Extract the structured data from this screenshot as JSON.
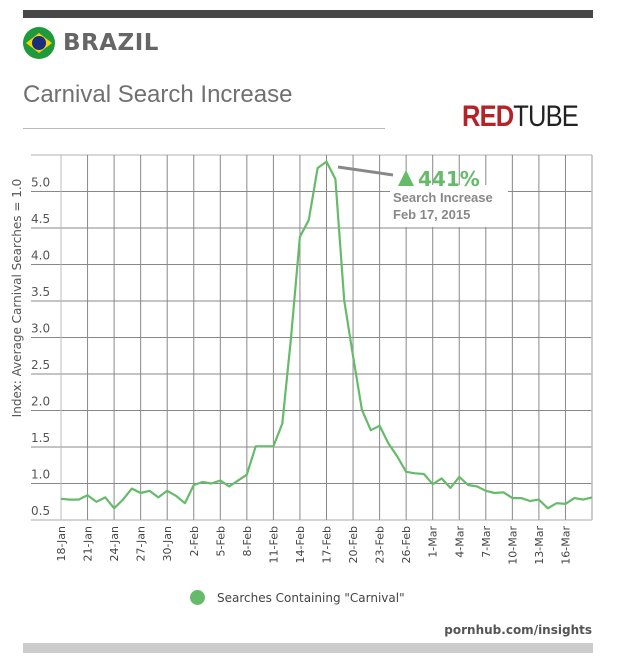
{
  "header": {
    "country": "BRAZIL",
    "title": "Carnival Search Increase",
    "logo": "REDTUBE",
    "flag_icon": "brazil-flag-icon"
  },
  "footer": {
    "source": "pornhub.com/insights"
  },
  "colors": {
    "line": "#66bb6a",
    "accent": "#5cb85c",
    "grid": "#888888",
    "logo_red": "#b5232a"
  },
  "chart_data": {
    "type": "line",
    "title": "Carnival Search Increase",
    "xlabel": "",
    "ylabel": "Index: Average Carnival Searches = 1.0",
    "ylim": [
      0.5,
      5.5
    ],
    "yticks": [
      "0.5",
      "1.0",
      "1.5",
      "2.0",
      "2.5",
      "3.0",
      "3.5",
      "4.0",
      "4.5",
      "5.0"
    ],
    "xticks": [
      "18-Jan",
      "21-Jan",
      "24-Jan",
      "27-Jan",
      "30-Jan",
      "2-Feb",
      "5-Feb",
      "8-Feb",
      "11-Feb",
      "14-Feb",
      "17-Feb",
      "20-Feb",
      "23-Feb",
      "26-Feb",
      "1-Mar",
      "4-Mar",
      "7-Mar",
      "10-Mar",
      "13-Mar",
      "16-Mar"
    ],
    "x_start": "18-Jan",
    "x_end": "19-Mar",
    "grid": true,
    "legend": "bottom",
    "series": [
      {
        "name": "Searches Containing \"Carnival\"",
        "values": [
          0.79,
          0.78,
          0.78,
          0.84,
          0.75,
          0.81,
          0.66,
          0.78,
          0.93,
          0.87,
          0.9,
          0.81,
          0.9,
          0.83,
          0.73,
          0.98,
          1.02,
          1.0,
          1.04,
          0.96,
          1.04,
          1.12,
          1.51,
          1.51,
          1.51,
          1.82,
          3.01,
          4.38,
          4.61,
          5.32,
          5.41,
          5.17,
          3.51,
          2.74,
          2.01,
          1.73,
          1.79,
          1.55,
          1.37,
          1.16,
          1.14,
          1.13,
          0.99,
          1.07,
          0.94,
          1.09,
          0.98,
          0.96,
          0.9,
          0.87,
          0.88,
          0.8,
          0.8,
          0.76,
          0.78,
          0.66,
          0.73,
          0.72,
          0.8,
          0.78,
          0.81
        ]
      }
    ],
    "annotation": {
      "value": "441%",
      "line1": "Search Increase",
      "line2": "Feb 17, 2015"
    }
  }
}
